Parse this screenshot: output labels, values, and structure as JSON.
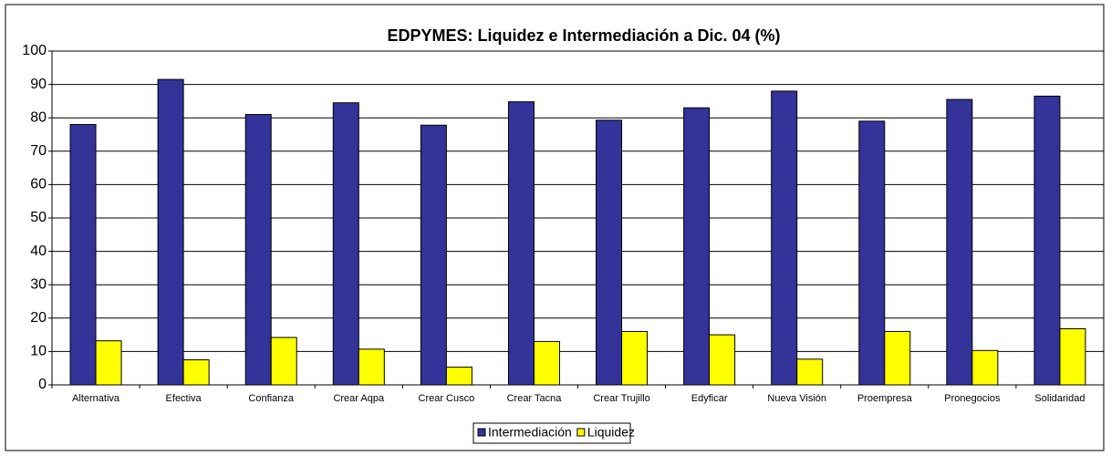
{
  "chart_data": {
    "type": "bar",
    "title": "EDPYMES: Liquidez e Intermediación a Dic. 04 (%)",
    "categories": [
      "Alternativa",
      "Efectiva",
      "Confianza",
      "Crear Aqpa",
      "Crear Cusco",
      "Crear Tacna",
      "Crear Trujillo",
      "Edyficar",
      "Nueva Visión",
      "Proempresa",
      "Pronegocios",
      "Solidaridad"
    ],
    "series": [
      {
        "name": "Intermediación",
        "color": "#333399",
        "values": [
          78,
          91.5,
          81,
          84.5,
          77.8,
          84.8,
          79.3,
          83,
          88,
          79,
          85.5,
          86.5
        ]
      },
      {
        "name": "Liquidez",
        "color": "#ffff00",
        "values": [
          13.2,
          7.5,
          14.2,
          10.7,
          5.3,
          13,
          16,
          15,
          7.7,
          16,
          10.3,
          16.8
        ]
      }
    ],
    "ylim": [
      0,
      100
    ],
    "yticks": [
      0,
      10,
      20,
      30,
      40,
      50,
      60,
      70,
      80,
      90,
      100
    ],
    "grid": true,
    "legend": "bottom"
  }
}
